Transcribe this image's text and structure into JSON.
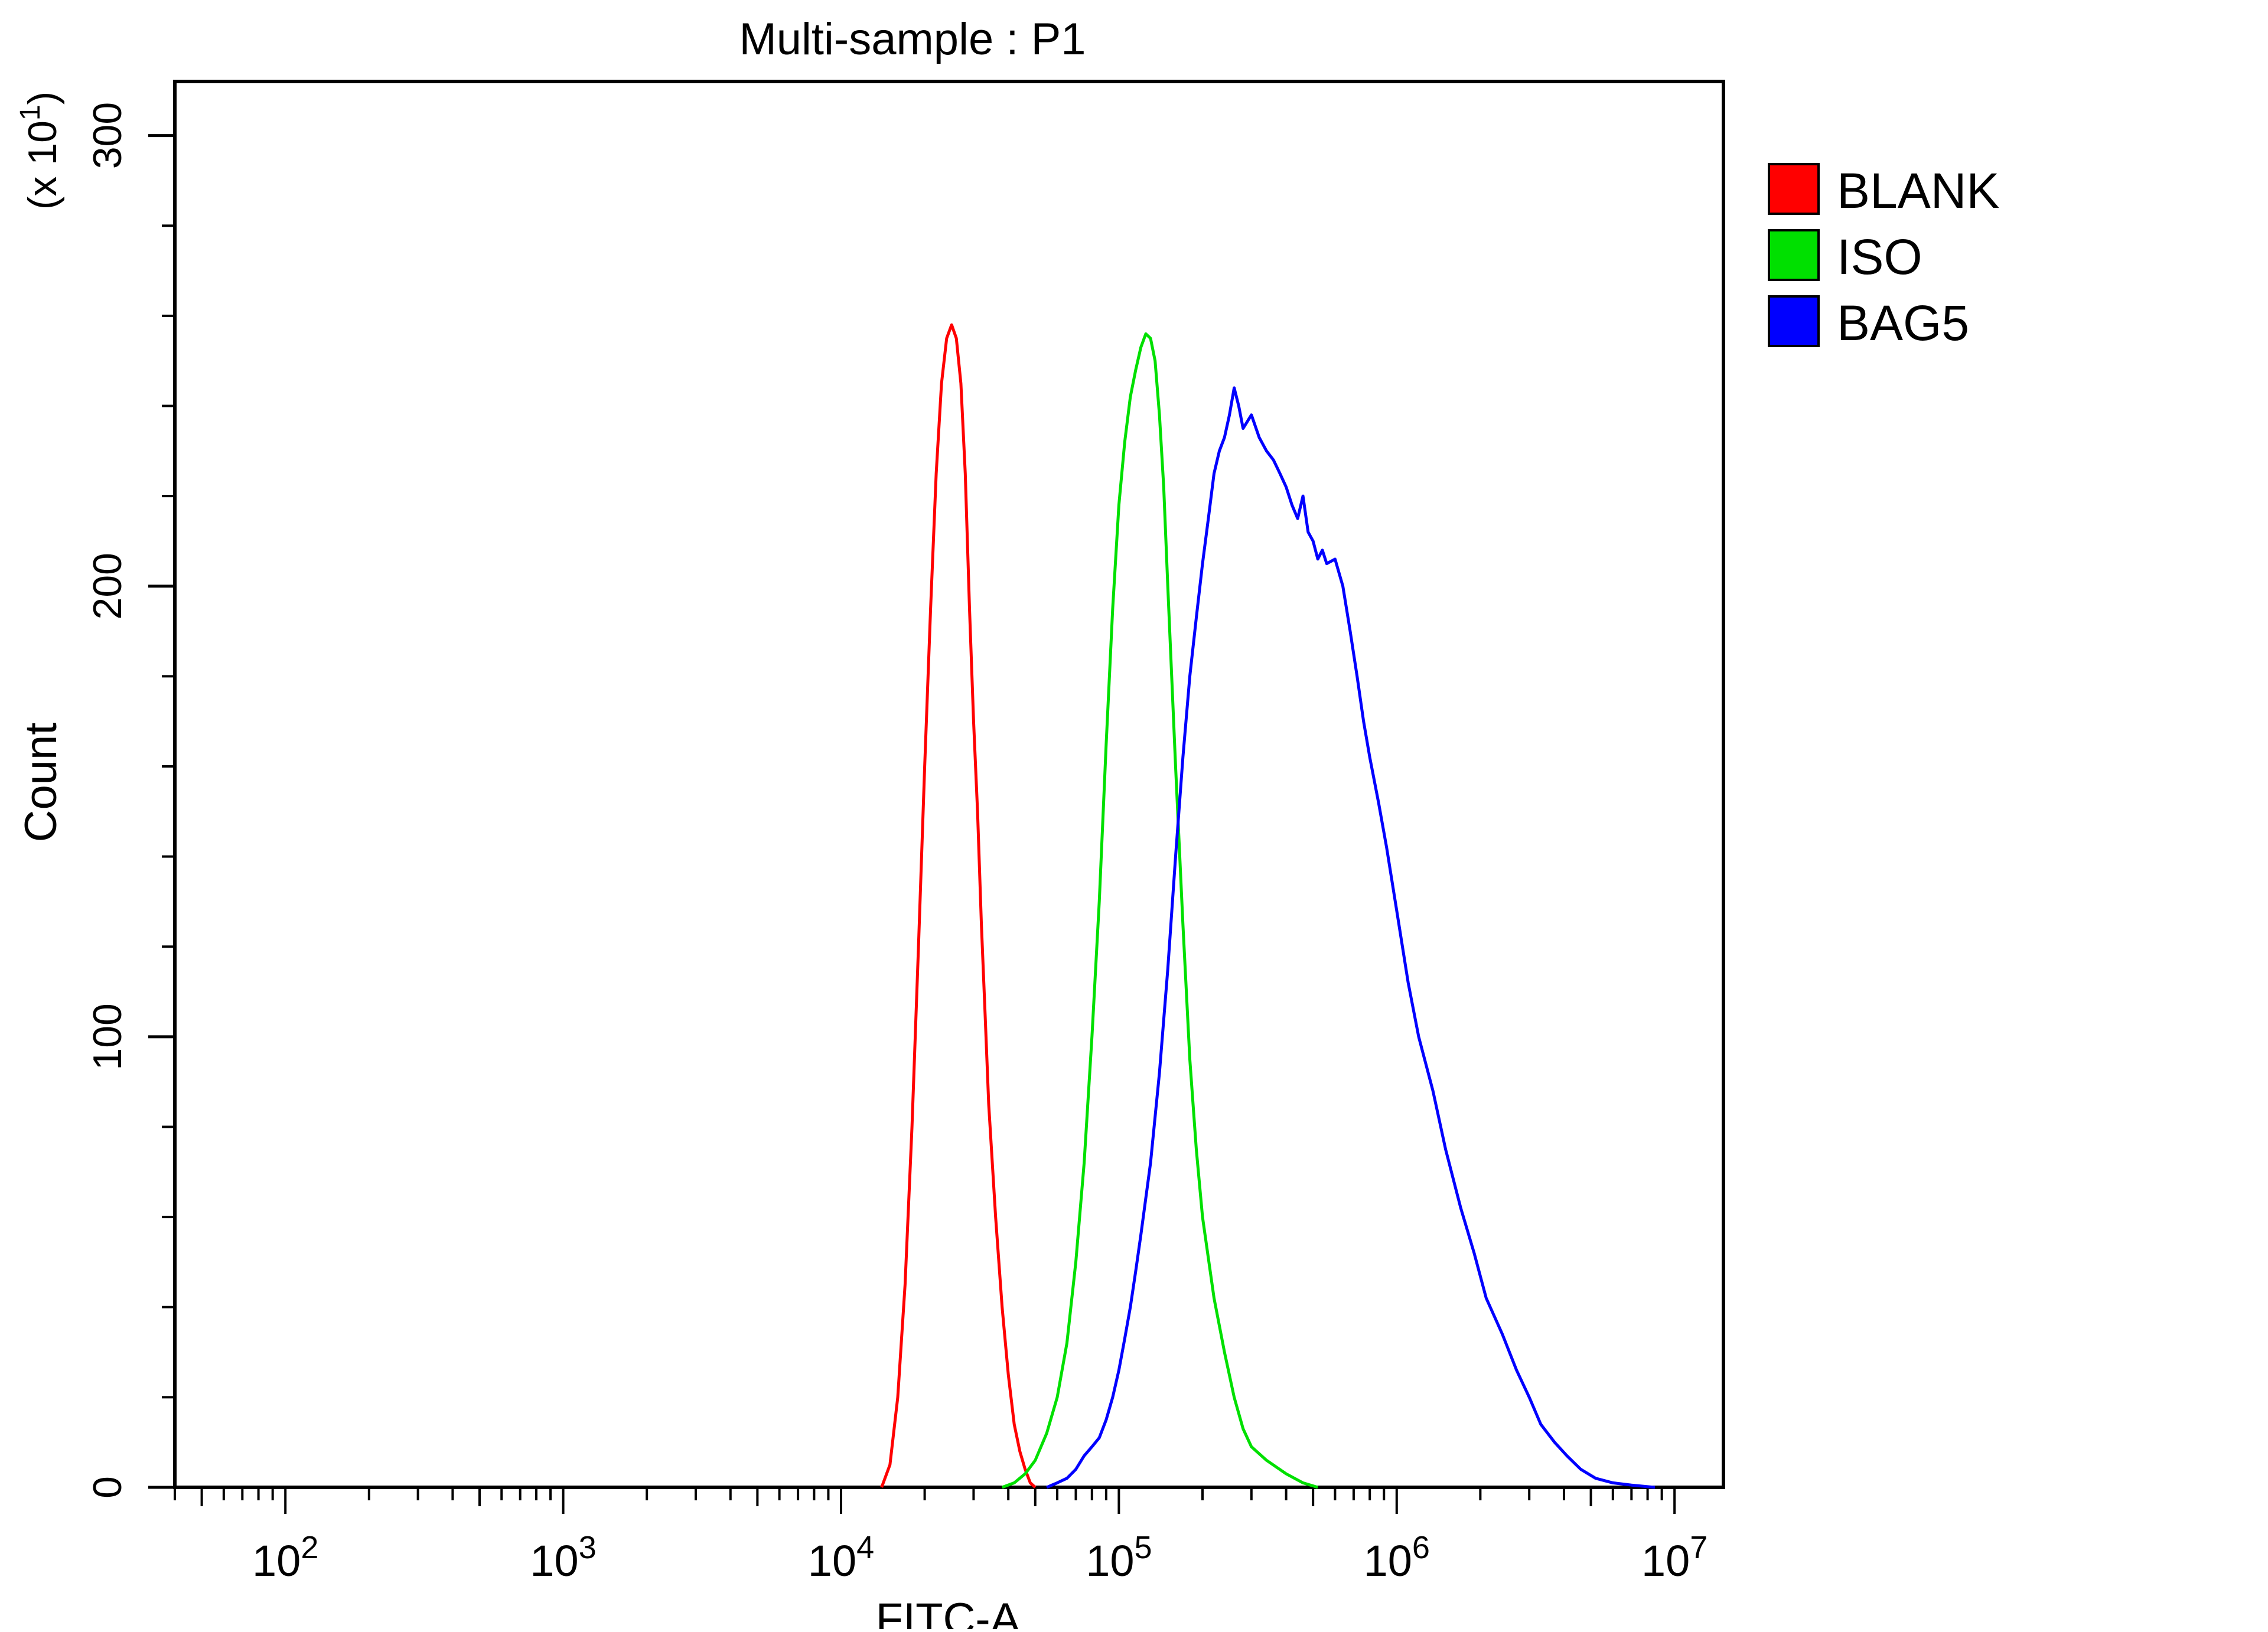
{
  "chart_data": {
    "type": "line",
    "title": "Multi-sample : P1",
    "xlabel": "FITC-A",
    "ylabel": "Count",
    "y_multiplier": {
      "prefix": "(x 10",
      "exponent": "1",
      "suffix": ")"
    },
    "x_scale": "log",
    "xlim": [
      40,
      15000000
    ],
    "ylim": [
      0,
      312
    ],
    "x_ticks": [
      {
        "value": 100,
        "base": "10",
        "exp": "2"
      },
      {
        "value": 1000,
        "base": "10",
        "exp": "3"
      },
      {
        "value": 10000,
        "base": "10",
        "exp": "4"
      },
      {
        "value": 100000,
        "base": "10",
        "exp": "5"
      },
      {
        "value": 1000000,
        "base": "10",
        "exp": "6"
      },
      {
        "value": 10000000,
        "base": "10",
        "exp": "7"
      }
    ],
    "y_ticks": [
      0,
      100,
      200,
      300
    ],
    "y_minor_step": 20,
    "grid": false,
    "legend_position": "right-top",
    "series": [
      {
        "name": "BLANK",
        "color": "#ff0000",
        "points": [
          [
            14000,
            0
          ],
          [
            15000,
            5
          ],
          [
            16000,
            20
          ],
          [
            17000,
            45
          ],
          [
            18000,
            80
          ],
          [
            19000,
            120
          ],
          [
            20000,
            160
          ],
          [
            21000,
            195
          ],
          [
            22000,
            225
          ],
          [
            23000,
            245
          ],
          [
            24000,
            255
          ],
          [
            25000,
            258
          ],
          [
            26000,
            255
          ],
          [
            27000,
            245
          ],
          [
            28000,
            225
          ],
          [
            29000,
            195
          ],
          [
            30000,
            170
          ],
          [
            31000,
            150
          ],
          [
            32000,
            125
          ],
          [
            33000,
            105
          ],
          [
            34000,
            85
          ],
          [
            36000,
            60
          ],
          [
            38000,
            40
          ],
          [
            40000,
            25
          ],
          [
            42000,
            14
          ],
          [
            44000,
            8
          ],
          [
            46000,
            4
          ],
          [
            48000,
            1
          ],
          [
            50000,
            0
          ]
        ]
      },
      {
        "name": "ISO",
        "color": "#00e000",
        "points": [
          [
            38000,
            0
          ],
          [
            42000,
            1
          ],
          [
            46000,
            3
          ],
          [
            50000,
            6
          ],
          [
            55000,
            12
          ],
          [
            60000,
            20
          ],
          [
            65000,
            32
          ],
          [
            70000,
            50
          ],
          [
            75000,
            72
          ],
          [
            80000,
            100
          ],
          [
            85000,
            130
          ],
          [
            90000,
            165
          ],
          [
            95000,
            195
          ],
          [
            100000,
            218
          ],
          [
            105000,
            232
          ],
          [
            110000,
            242
          ],
          [
            115000,
            248
          ],
          [
            120000,
            253
          ],
          [
            125000,
            256
          ],
          [
            130000,
            255
          ],
          [
            135000,
            250
          ],
          [
            140000,
            238
          ],
          [
            145000,
            222
          ],
          [
            150000,
            200
          ],
          [
            160000,
            160
          ],
          [
            170000,
            125
          ],
          [
            180000,
            95
          ],
          [
            190000,
            75
          ],
          [
            200000,
            60
          ],
          [
            220000,
            42
          ],
          [
            240000,
            30
          ],
          [
            260000,
            20
          ],
          [
            280000,
            13
          ],
          [
            300000,
            9
          ],
          [
            340000,
            6
          ],
          [
            400000,
            3
          ],
          [
            460000,
            1
          ],
          [
            520000,
            0
          ]
        ]
      },
      {
        "name": "BAG5",
        "color": "#0000ff",
        "points": [
          [
            55000,
            0
          ],
          [
            60000,
            1
          ],
          [
            65000,
            2
          ],
          [
            70000,
            4
          ],
          [
            75000,
            7
          ],
          [
            80000,
            9
          ],
          [
            85000,
            11
          ],
          [
            90000,
            15
          ],
          [
            95000,
            20
          ],
          [
            100000,
            26
          ],
          [
            105000,
            33
          ],
          [
            110000,
            40
          ],
          [
            115000,
            48
          ],
          [
            120000,
            56
          ],
          [
            130000,
            72
          ],
          [
            140000,
            92
          ],
          [
            150000,
            115
          ],
          [
            160000,
            140
          ],
          [
            170000,
            162
          ],
          [
            180000,
            180
          ],
          [
            190000,
            193
          ],
          [
            200000,
            205
          ],
          [
            210000,
            215
          ],
          [
            220000,
            225
          ],
          [
            230000,
            230
          ],
          [
            240000,
            233
          ],
          [
            250000,
            238
          ],
          [
            260000,
            244
          ],
          [
            270000,
            240
          ],
          [
            280000,
            235
          ],
          [
            300000,
            238
          ],
          [
            320000,
            233
          ],
          [
            340000,
            230
          ],
          [
            360000,
            228
          ],
          [
            380000,
            225
          ],
          [
            400000,
            222
          ],
          [
            420000,
            218
          ],
          [
            440000,
            215
          ],
          [
            460000,
            220
          ],
          [
            480000,
            212
          ],
          [
            500000,
            210
          ],
          [
            520000,
            206
          ],
          [
            540000,
            208
          ],
          [
            560000,
            205
          ],
          [
            600000,
            206
          ],
          [
            640000,
            200
          ],
          [
            680000,
            190
          ],
          [
            720000,
            180
          ],
          [
            760000,
            170
          ],
          [
            800000,
            162
          ],
          [
            860000,
            152
          ],
          [
            920000,
            142
          ],
          [
            1000000,
            128
          ],
          [
            1100000,
            112
          ],
          [
            1200000,
            100
          ],
          [
            1350000,
            88
          ],
          [
            1500000,
            75
          ],
          [
            1700000,
            62
          ],
          [
            1900000,
            52
          ],
          [
            2100000,
            42
          ],
          [
            2400000,
            34
          ],
          [
            2700000,
            26
          ],
          [
            3000000,
            20
          ],
          [
            3300000,
            14
          ],
          [
            3700000,
            10
          ],
          [
            4100000,
            7
          ],
          [
            4600000,
            4
          ],
          [
            5200000,
            2
          ],
          [
            6000000,
            1
          ],
          [
            7000000,
            0.5
          ],
          [
            8500000,
            0
          ]
        ]
      }
    ]
  }
}
